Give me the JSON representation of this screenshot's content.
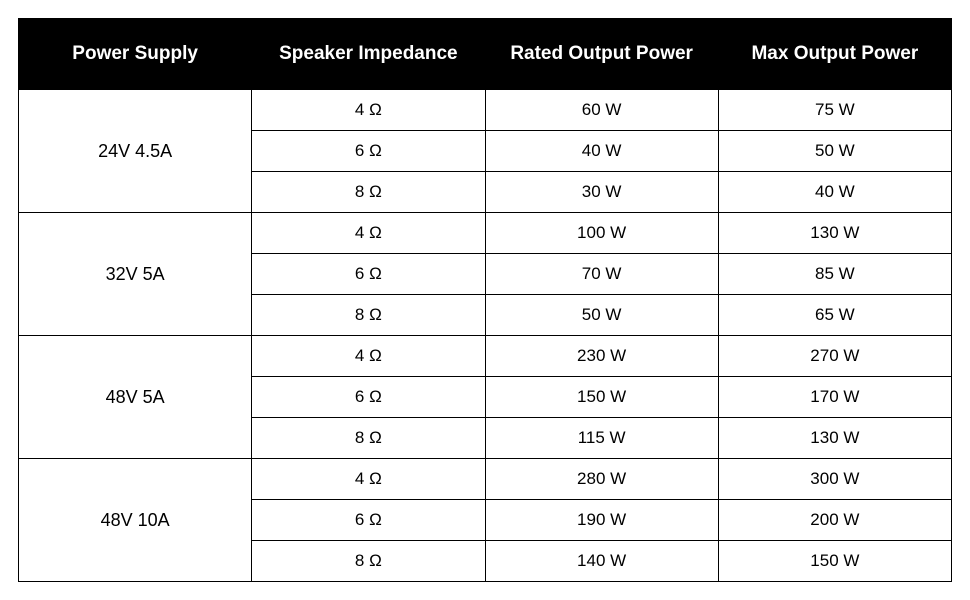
{
  "table": {
    "columns": [
      "Power Supply",
      "Speaker Impedance",
      "Rated Output Power",
      "Max Output Power"
    ],
    "col_widths": [
      "25%",
      "25%",
      "25%",
      "25%"
    ],
    "header_bg": "#000000",
    "header_fg": "#ffffff",
    "header_fontsize": 19,
    "header_fontweight": 700,
    "cell_fontsize": 17,
    "border_color": "#000000",
    "background_color": "#ffffff",
    "groups": [
      {
        "supply": "24V 4.5A",
        "rows": [
          {
            "impedance": "4 Ω",
            "rated": "60 W",
            "max": "75 W"
          },
          {
            "impedance": "6 Ω",
            "rated": "40 W",
            "max": "50 W"
          },
          {
            "impedance": "8 Ω",
            "rated": "30 W",
            "max": "40 W"
          }
        ]
      },
      {
        "supply": "32V 5A",
        "rows": [
          {
            "impedance": "4 Ω",
            "rated": "100 W",
            "max": "130 W"
          },
          {
            "impedance": "6 Ω",
            "rated": "70 W",
            "max": "85 W"
          },
          {
            "impedance": "8 Ω",
            "rated": "50 W",
            "max": "65 W"
          }
        ]
      },
      {
        "supply": "48V 5A",
        "rows": [
          {
            "impedance": "4 Ω",
            "rated": "230 W",
            "max": "270 W"
          },
          {
            "impedance": "6 Ω",
            "rated": "150 W",
            "max": "170 W"
          },
          {
            "impedance": "8 Ω",
            "rated": "115 W",
            "max": "130 W"
          }
        ]
      },
      {
        "supply": "48V 10A",
        "rows": [
          {
            "impedance": "4 Ω",
            "rated": "280 W",
            "max": "300 W"
          },
          {
            "impedance": "6 Ω",
            "rated": "190 W",
            "max": "200 W"
          },
          {
            "impedance": "8 Ω",
            "rated": "140 W",
            "max": "150 W"
          }
        ]
      }
    ]
  }
}
